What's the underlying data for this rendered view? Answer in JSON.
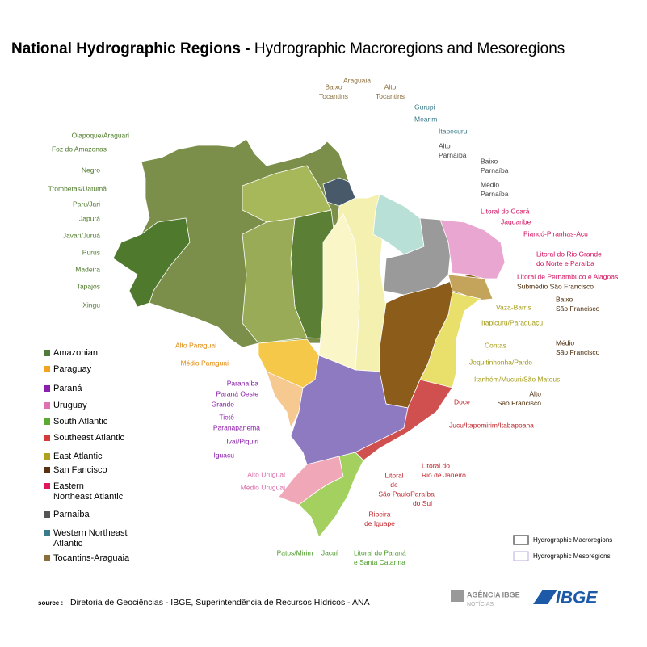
{
  "header": {
    "title_bold": "National Hydrographic Regions -",
    "title_rest": "Hydrographic Macroregions and Mesoregions"
  },
  "map_labels": [
    {
      "lines": [
        "Baixo",
        "Tocantins"
      ]
    },
    {
      "lines": [
        "Araguaia"
      ]
    },
    {
      "lines": [
        "Alto",
        "Tocantins"
      ]
    },
    {
      "lines": [
        "Gurupi"
      ]
    },
    {
      "lines": [
        "Mearim"
      ]
    },
    {
      "lines": [
        "Itapecuru"
      ]
    },
    {
      "lines": [
        "Alto",
        "Parnaíba"
      ]
    },
    {
      "lines": [
        "Baixo",
        "Parnaíba"
      ]
    },
    {
      "lines": [
        "Médio",
        "Parnaíba"
      ]
    },
    {
      "lines": [
        "Litoral do Ceará"
      ]
    },
    {
      "lines": [
        "Jaguaribe"
      ]
    },
    {
      "lines": [
        "Piancó-Piranhas-Açu"
      ]
    },
    {
      "lines": [
        "Litoral do Rio Grande",
        "do Norte e Paraíba"
      ]
    },
    {
      "lines": [
        "Litoral de Pernambuco e Alagoas"
      ]
    },
    {
      "lines": [
        "Submédio São Francisco"
      ]
    },
    {
      "lines": [
        "Baixo",
        "São Francisco"
      ]
    },
    {
      "lines": [
        "Médio",
        "São Francisco"
      ]
    },
    {
      "lines": [
        "Alto",
        "São Francisco"
      ]
    },
    {
      "lines": [
        "Vaza-Barris"
      ]
    },
    {
      "lines": [
        "Itapicuru/Paraguaçu"
      ]
    },
    {
      "lines": [
        "Contas"
      ]
    },
    {
      "lines": [
        "Jequitinhonha/Pardo"
      ]
    },
    {
      "lines": [
        "Itanhém/Mucuri/São Mateus"
      ]
    },
    {
      "lines": [
        "Doce"
      ]
    },
    {
      "lines": [
        "Jucu/Itapemirim/Itabapoana"
      ]
    },
    {
      "lines": [
        "Litoral do",
        "Rio de Janeiro"
      ]
    },
    {
      "lines": [
        "Litoral",
        "de",
        "São Paulo"
      ]
    },
    {
      "lines": [
        "Paraíba",
        "do Sul"
      ]
    },
    {
      "lines": [
        "Ribeira",
        "de Iguape"
      ]
    },
    {
      "lines": [
        "Patos/Mirim"
      ]
    },
    {
      "lines": [
        "Jacuí"
      ]
    },
    {
      "lines": [
        "Litoral do Paraná",
        "e Santa Catarina"
      ]
    },
    {
      "lines": [
        "Alto Uruguai"
      ]
    },
    {
      "lines": [
        "Médio Uruguai"
      ]
    },
    {
      "lines": [
        "Paranaíba"
      ]
    },
    {
      "lines": [
        "Paraná Oeste"
      ]
    },
    {
      "lines": [
        "Grande"
      ]
    },
    {
      "lines": [
        "Tietê"
      ]
    },
    {
      "lines": [
        "Paranapanema"
      ]
    },
    {
      "lines": [
        "Ivaí/Piquiri"
      ]
    },
    {
      "lines": [
        "Iguaçu"
      ]
    },
    {
      "lines": [
        "Alto Paraguai"
      ]
    },
    {
      "lines": [
        "Médio Paraguai"
      ]
    },
    {
      "lines": [
        "Oiapoque/Araguari"
      ]
    },
    {
      "lines": [
        "Foz do Amazonas"
      ]
    },
    {
      "lines": [
        "Negro"
      ]
    },
    {
      "lines": [
        "Trombetas/Uatumã"
      ]
    },
    {
      "lines": [
        "Paru/Jari"
      ]
    },
    {
      "lines": [
        "Japurá"
      ]
    },
    {
      "lines": [
        "Javari/Juruá"
      ]
    },
    {
      "lines": [
        "Purus"
      ]
    },
    {
      "lines": [
        "Madeira"
      ]
    },
    {
      "lines": [
        "Tapajós"
      ]
    },
    {
      "lines": [
        "Xingu"
      ]
    }
  ],
  "legend": [
    {
      "lines": [
        "Amazonian"
      ],
      "color": "#4e7a3a"
    },
    {
      "lines": [
        "Paraguay"
      ],
      "color": "#f2a31f"
    },
    {
      "lines": [
        "Paraná"
      ],
      "color": "#8a1fb0"
    },
    {
      "lines": [
        "Uruguay"
      ],
      "color": "#e070b0"
    },
    {
      "lines": [
        "South Atlantic"
      ],
      "color": "#5aaa32"
    },
    {
      "lines": [
        "Southeast Atlantic"
      ],
      "color": "#d43a3a"
    },
    {
      "lines": [
        "East  Atlantic"
      ],
      "color": "#b0a020"
    },
    {
      "lines": [
        "San Fancisco"
      ],
      "color": "#5a3212"
    },
    {
      "lines": [
        "Eastern",
        "Northeast Atlantic"
      ],
      "color": "#e0155e"
    },
    {
      "lines": [
        "Parnaíba"
      ],
      "color": "#555555"
    },
    {
      "lines": [
        "Western Northeast",
        "Atlantic"
      ],
      "color": "#3a7a8a"
    },
    {
      "lines": [
        "Tocantins-Araguaia"
      ],
      "color": "#8a6d3b"
    }
  ],
  "boundary_key": [
    "Hydrographic Macroregions",
    "Hydrographic Mesoregions"
  ],
  "source": {
    "label": "source :",
    "text": "Diretoria de Geociências - IBGE, Superintendência de Recursos Hídricos - ANA"
  },
  "logos": {
    "agencia": "AGÊNCIA IBGE",
    "noticias": "NOTÍCIAS",
    "ibge": "IBGE"
  }
}
